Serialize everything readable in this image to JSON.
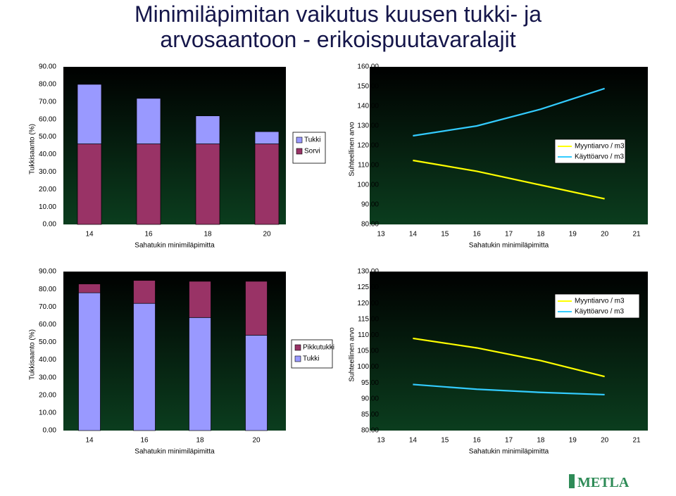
{
  "title_line1": "Minimiläpimitan vaikutus kuusen tukki- ja",
  "title_line2": "arvosaantoon - erikoispuutavaralajit",
  "logo_text": "METLA",
  "colors": {
    "bar_top": "#9999ff",
    "bar_bottom": "#993366",
    "myyntiarvo": "#ffff00",
    "kayttoarvo": "#33ccff",
    "plot_bg_dark": "#000000",
    "plot_bg_light": "#0b3d1e",
    "logo_green": "#2e8b57"
  },
  "chart_data": [
    {
      "type": "bar",
      "stacked": true,
      "xlabel": "Sahatukin minimiläpimitta",
      "ylabel": "Tukkisaanto (%)",
      "ylim": [
        0,
        90
      ],
      "yticks": [
        "0.00",
        "10.00",
        "20.00",
        "30.00",
        "40.00",
        "50.00",
        "60.00",
        "70.00",
        "80.00",
        "90.00"
      ],
      "categories": [
        "14",
        "16",
        "18",
        "20"
      ],
      "series": [
        {
          "name": "Sorvi",
          "color": "#993366",
          "values": [
            46,
            46,
            46,
            46
          ]
        },
        {
          "name": "Tukki",
          "color": "#9999ff",
          "values": [
            34,
            26,
            16,
            7
          ]
        }
      ],
      "legend": [
        "Tukki",
        "Sorvi"
      ]
    },
    {
      "type": "line",
      "xlabel": "Sahatukin minimiläpimitta",
      "ylabel": "Suhteellinen arvo",
      "ylim": [
        80,
        160
      ],
      "yticks": [
        "80.00",
        "90.00",
        "100.00",
        "110.00",
        "120.00",
        "130.00",
        "140.00",
        "150.00",
        "160.00"
      ],
      "xticks": [
        "13",
        "14",
        "15",
        "16",
        "17",
        "18",
        "19",
        "20",
        "21"
      ],
      "x": [
        14,
        16,
        18,
        20
      ],
      "series": [
        {
          "name": "Myyntiarvo / m3",
          "color": "#ffff00",
          "values": [
            112.5,
            107,
            100,
            93
          ]
        },
        {
          "name": "Käyttöarvo / m3",
          "color": "#33ccff",
          "values": [
            125,
            130,
            138.5,
            149
          ]
        }
      ]
    },
    {
      "type": "bar",
      "stacked": true,
      "xlabel": "Sahatukin minimiläpimitta",
      "ylabel": "Tukkisaanto (%)",
      "ylim": [
        0,
        90
      ],
      "yticks": [
        "0.00",
        "10.00",
        "20.00",
        "30.00",
        "40.00",
        "50.00",
        "60.00",
        "70.00",
        "80.00",
        "90.00"
      ],
      "categories": [
        "14",
        "16",
        "18",
        "20"
      ],
      "series": [
        {
          "name": "Tukki",
          "color": "#9999ff",
          "values": [
            78,
            72,
            64,
            54
          ]
        },
        {
          "name": "Pikkutukki",
          "color": "#993366",
          "values": [
            5,
            13,
            20.5,
            30.5
          ]
        }
      ],
      "legend": [
        "Pikkutukki",
        "Tukki"
      ]
    },
    {
      "type": "line",
      "xlabel": "Sahatukin minimiläpimitta",
      "ylabel": "Suhteellinen arvo",
      "ylim": [
        80,
        130
      ],
      "yticks": [
        "80.00",
        "85.00",
        "90.00",
        "95.00",
        "100.00",
        "105.00",
        "110.00",
        "115.00",
        "120.00",
        "125.00",
        "130.00"
      ],
      "xticks": [
        "13",
        "14",
        "15",
        "16",
        "17",
        "18",
        "19",
        "20",
        "21"
      ],
      "x": [
        14,
        16,
        18,
        20
      ],
      "series": [
        {
          "name": "Myyntiarvo / m3",
          "color": "#ffff00",
          "values": [
            109,
            106,
            102,
            97
          ]
        },
        {
          "name": "Käyttöarvo / m3",
          "color": "#33ccff",
          "values": [
            94.5,
            93,
            92,
            91.3
          ]
        }
      ]
    }
  ]
}
